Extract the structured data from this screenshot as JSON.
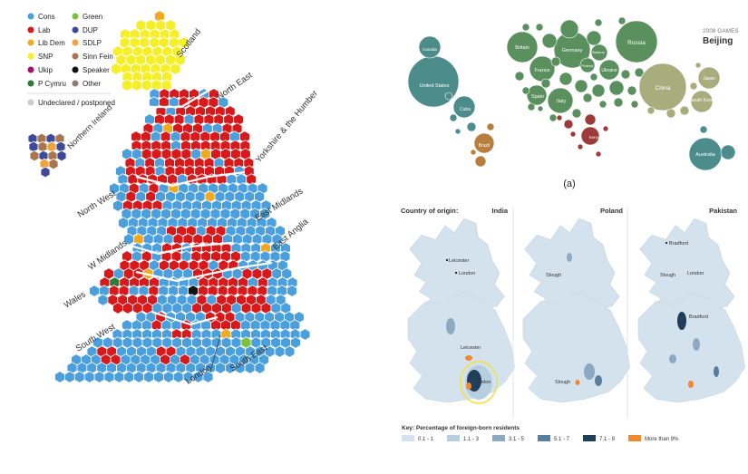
{
  "election_map": {
    "legend": [
      {
        "label": "Cons",
        "color": "#4a9fdc"
      },
      {
        "label": "Lab",
        "color": "#d7191c"
      },
      {
        "label": "Lib Dem",
        "color": "#f3a81e"
      },
      {
        "label": "SNP",
        "color": "#f4ef29"
      },
      {
        "label": "Ukip",
        "color": "#a2126c"
      },
      {
        "label": "P Cymru",
        "color": "#2f7a3a"
      },
      {
        "label": "Green",
        "color": "#78c23e"
      },
      {
        "label": "DUP",
        "color": "#3c4a9c"
      },
      {
        "label": "SDLP",
        "color": "#f0a23c"
      },
      {
        "label": "Sinn Fein",
        "color": "#a8754e"
      },
      {
        "label": "Speaker",
        "color": "#111111"
      },
      {
        "label": "Other",
        "color": "#8d7e72"
      }
    ],
    "undeclared_label": "Undeclared / postponed",
    "undeclared_color": "#cccccc",
    "regions": {
      "scotland": "Scotland",
      "north_east": "North East",
      "northern_ireland": "Northern Ireland",
      "yorkshire": "Yorkshire & the Humber",
      "north_west": "North West",
      "east_midlands": "East Midlands",
      "w_midlands": "W Midlands",
      "east_anglia": "East Anglia",
      "wales": "Wales",
      "south_west": "South West",
      "london": "London",
      "south_east": "South East"
    }
  },
  "bubble_map": {
    "header_small": "2008 GAMES",
    "header_city": "Beijing",
    "caption": "(a)",
    "green_color": "#5a8f5e",
    "teal_color": "#4c8d8c",
    "olive_color": "#a8ad7e",
    "red_color": "#9c3b3a",
    "brown_color": "#b87f3c",
    "labels": {
      "britain": "Britain",
      "germany": "Germany",
      "russia": "Russia",
      "belarus": "Belarus",
      "france": "France",
      "poland": "Poland",
      "ukraine": "Ukraine",
      "spain": "Spain",
      "italy": "Italy",
      "kenya": "Kenya",
      "china": "China",
      "japan": "Japan",
      "south_korea": "South Korea",
      "australia": "Australia",
      "canada": "Canada",
      "united_states": "United States",
      "cuba": "Cuba",
      "brazil": "Brazil"
    }
  },
  "migration_maps": {
    "heading": "Country of origin:",
    "columns": [
      "India",
      "Poland",
      "Pakistan"
    ],
    "place_labels": {
      "leicester": "Leicester",
      "london": "London",
      "slough": "Slough",
      "bradford": "Bradford"
    },
    "key_title": "Key: Percentage of foreign-born residents",
    "key": [
      {
        "label": "0.1 - 1",
        "color": "#d4e2ee"
      },
      {
        "label": "1.1 - 3",
        "color": "#b7cee0"
      },
      {
        "label": "3.1 - 5",
        "color": "#8ca9c2"
      },
      {
        "label": "5.1 - 7",
        "color": "#587f9e"
      },
      {
        "label": "7.1 - 9",
        "color": "#213f5a"
      },
      {
        "label": "More than 9%",
        "color": "#ef8a2c"
      }
    ]
  }
}
